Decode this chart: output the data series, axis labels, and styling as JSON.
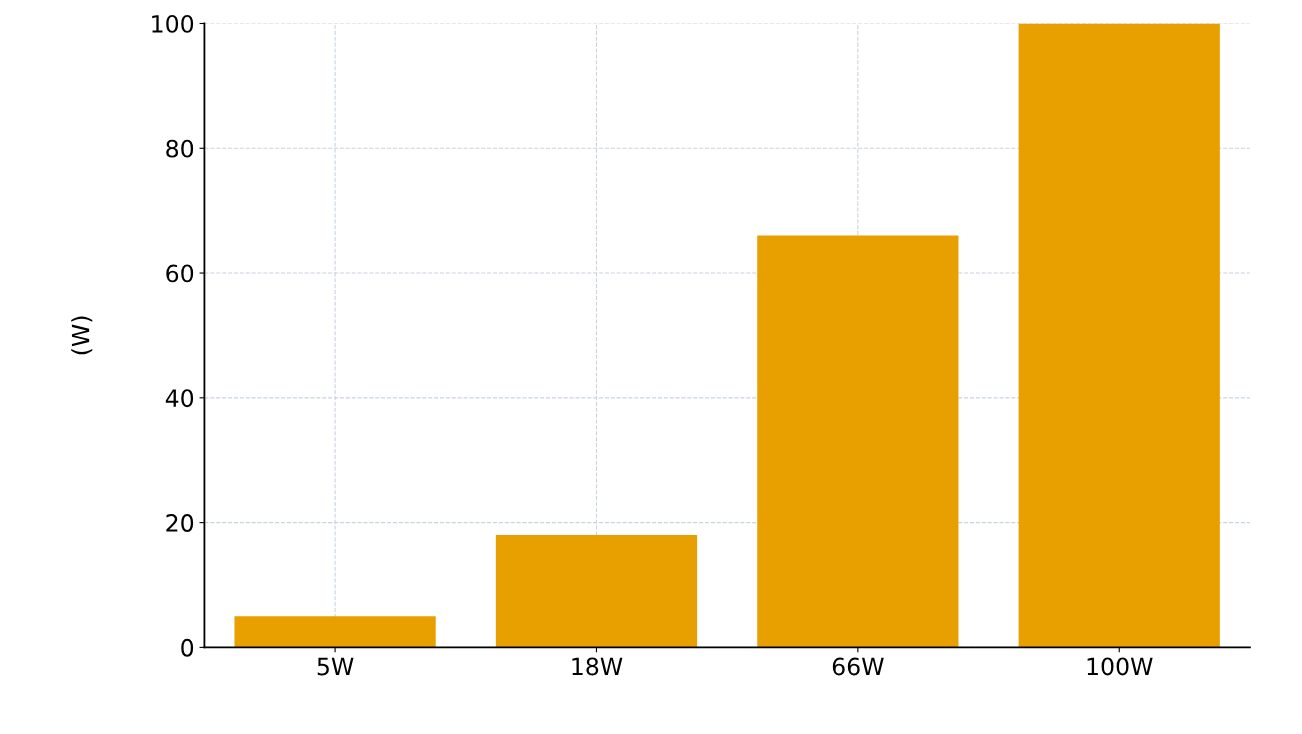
{
  "chart_data": {
    "type": "bar",
    "ylabel": "(W)",
    "categories": [
      "5W",
      "18W",
      "66W",
      "100W"
    ],
    "values": [
      5,
      18,
      66,
      100
    ],
    "color": "#e8a000",
    "ylim": [
      0,
      100
    ],
    "yticks": [
      0,
      20,
      40,
      60,
      80,
      100
    ],
    "grid": true
  }
}
